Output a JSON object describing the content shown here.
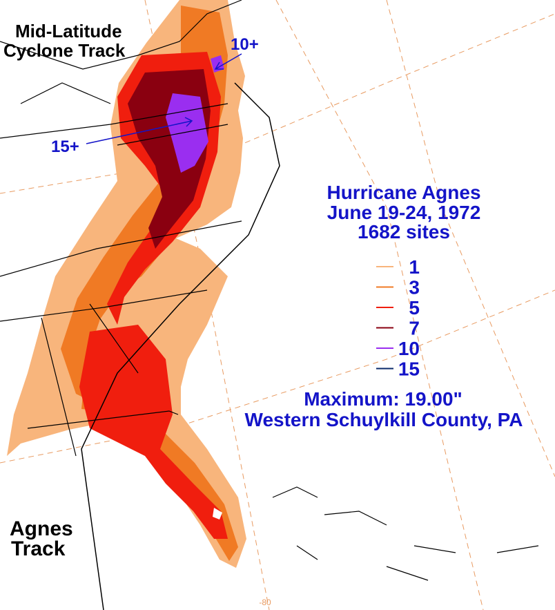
{
  "map": {
    "cyclone_label": [
      "Mid-Latitude",
      "Cyclone Track"
    ],
    "arrow_labels": [
      "10+",
      "15+"
    ],
    "title": [
      "Hurricane Agnes",
      "June 19-24, 1972",
      "1682 sites"
    ],
    "legend": [
      {
        "label": 1,
        "color": "#f8b57c"
      },
      {
        "label": 3,
        "color": "#f07a24"
      },
      {
        "label": 5,
        "color": "#f01e0e"
      },
      {
        "label": 7,
        "color": "#8a0010"
      },
      {
        "label": 10,
        "color": "#9a2ef0"
      },
      {
        "label": 15,
        "color": "#0a2a6a"
      }
    ],
    "maximum": "Maximum:  19.00\"",
    "location": "Western Schuylkill County, PA",
    "agnes_label": [
      "Agnes",
      "Track"
    ],
    "longitude_label": "-80"
  }
}
